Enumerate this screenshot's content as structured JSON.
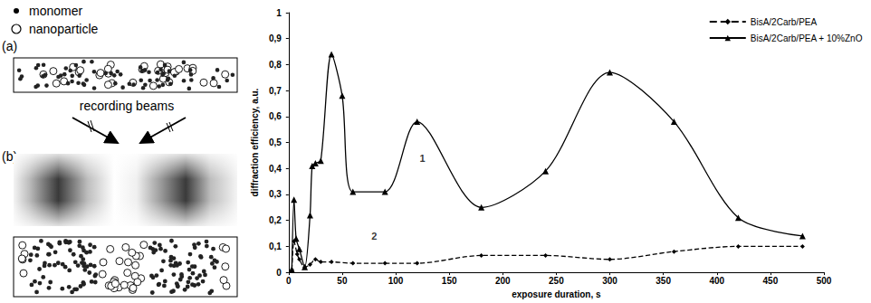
{
  "diagram": {
    "key_labels": [
      "monomer",
      "nanoparticle"
    ],
    "panels": [
      "(a)",
      "(b)"
    ],
    "beams_label": "recording beams"
  },
  "chart_data": {
    "type": "line",
    "xlabel": "exposure duration, s",
    "ylabel": "diffraction efficiency, a.u.",
    "xlim": [
      0,
      500
    ],
    "xticks": [
      0,
      50,
      100,
      150,
      200,
      250,
      300,
      350,
      400,
      450,
      500
    ],
    "ylim": [
      0,
      1
    ],
    "yticks": [
      0,
      {
        "value": 0.1,
        "label": "0,1"
      },
      {
        "value": 0.2,
        "label": "0,2"
      },
      {
        "value": 0.3,
        "label": "0,3"
      },
      {
        "value": 0.4,
        "label": "0,4"
      },
      {
        "value": 0.5,
        "label": "0,5"
      },
      {
        "value": 0.6,
        "label": "0,6"
      },
      {
        "value": 0.7,
        "label": "0,7"
      },
      {
        "value": 0.8,
        "label": "0,8"
      },
      {
        "value": 0.9,
        "label": "0,9"
      },
      1
    ],
    "grid": false,
    "legend": "upper right",
    "series": [
      {
        "name": "BisA/2Carb/PEA",
        "color": "#000000",
        "line_style": "dashed",
        "marker": "diamond",
        "x": [
          3,
          5,
          8,
          10,
          15,
          20,
          25,
          30,
          40,
          60,
          90,
          120,
          180,
          240,
          300,
          360,
          420,
          480
        ],
        "values": [
          0.01,
          0.12,
          0.07,
          0.05,
          0.02,
          0.03,
          0.05,
          0.04,
          0.04,
          0.035,
          0.035,
          0.035,
          0.065,
          0.065,
          0.05,
          0.08,
          0.1,
          0.1
        ]
      },
      {
        "name": "BisA/2Carb/PEA + 10%ZnO",
        "color": "#000000",
        "line_style": "solid",
        "marker": "triangle",
        "x": [
          3,
          5,
          7,
          10,
          15,
          20,
          22,
          25,
          30,
          40,
          50,
          60,
          90,
          120,
          180,
          240,
          300,
          360,
          420,
          480
        ],
        "values": [
          0.01,
          0.28,
          0.13,
          0.09,
          0.02,
          0.22,
          0.41,
          0.42,
          0.43,
          0.84,
          0.68,
          0.31,
          0.31,
          0.58,
          0.25,
          0.39,
          0.77,
          0.58,
          0.21,
          0.14
        ]
      }
    ],
    "annotations": [
      {
        "text": "1",
        "x": 125,
        "y": 0.44
      },
      {
        "text": "2",
        "x": 80,
        "y": 0.14
      }
    ]
  }
}
